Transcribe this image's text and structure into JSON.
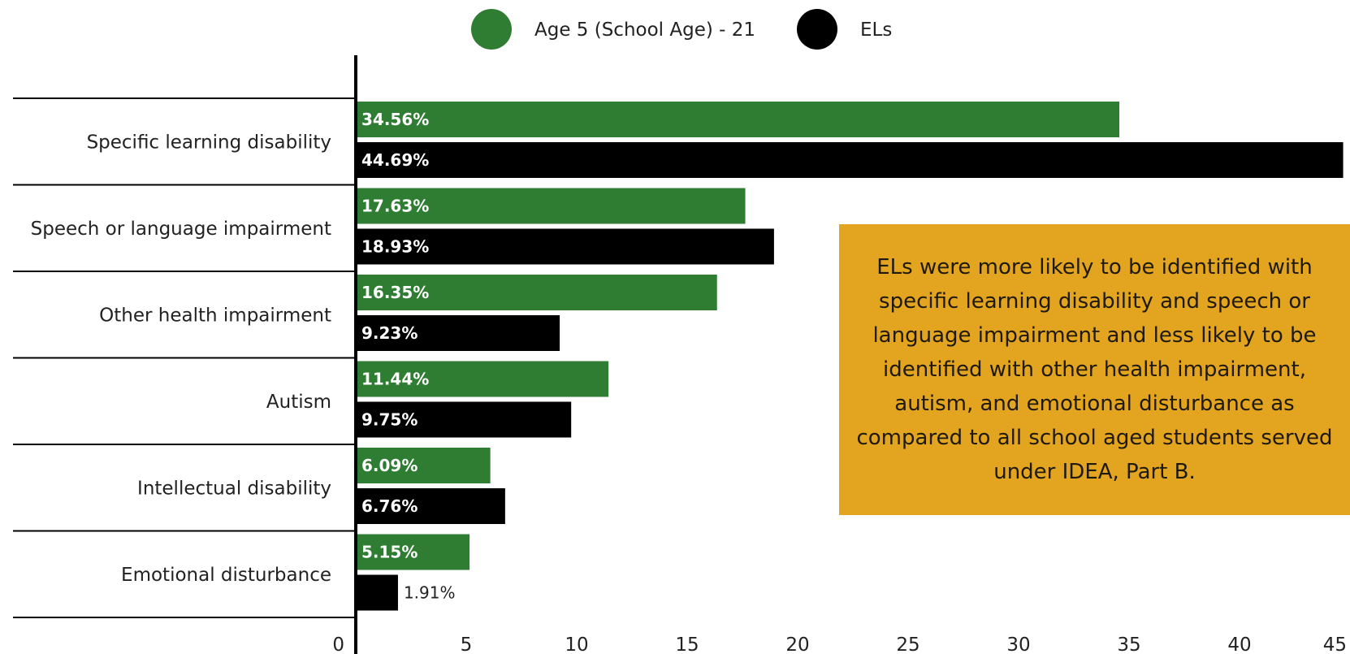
{
  "chart_data": {
    "type": "bar",
    "orientation": "horizontal",
    "categories": [
      "Specific learning disability",
      "Speech or language impairment",
      "Other health impairment",
      "Autism",
      "Intellectual disability",
      "Emotional disturbance"
    ],
    "series": [
      {
        "name": "Age 5 (School Age) - 21",
        "color": "#2f7d32",
        "values": [
          34.56,
          17.63,
          16.35,
          11.44,
          6.09,
          5.15
        ],
        "labels": [
          "34.56%",
          "17.63%",
          "16.35%",
          "11.44%",
          "6.09%",
          "5.15%"
        ]
      },
      {
        "name": "ELs",
        "color": "#000000",
        "values": [
          44.69,
          18.93,
          9.23,
          9.75,
          6.76,
          1.91
        ],
        "labels": [
          "44.69%",
          "18.93%",
          "9.23%",
          "9.75%",
          "6.76%",
          "1.91%"
        ]
      }
    ],
    "xlim": [
      0,
      45
    ],
    "x_ticks": [
      "0",
      "5",
      "10",
      "15",
      "20",
      "25",
      "30",
      "35",
      "40",
      "45"
    ],
    "legend_position": "top-center",
    "grid": false,
    "annotation": "ELs were more likely to be identified with specific learning disability and speech or language impairment and less likely to be identified with other health impairment, autism, and emotional disturbance as compared to all school aged students served under IDEA, Part B."
  }
}
